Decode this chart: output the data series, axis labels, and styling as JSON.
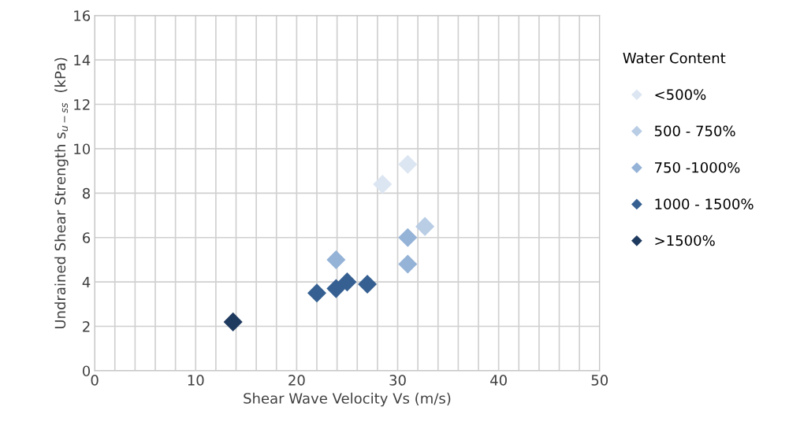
{
  "chart_data": {
    "type": "scatter",
    "xlabel": "Shear Wave Velocity Vs (m/s)",
    "ylabel": "Undrained Shear Strength s$_{u−ss}$  (kPa)",
    "legend_title": "Water Content",
    "legend": "right",
    "marker": "diamond",
    "grid": true,
    "xlim": [
      0,
      50
    ],
    "ylim": [
      0,
      16
    ],
    "xticks": [
      0,
      {
        "value": 2,
        "label": null
      },
      {
        "value": 4,
        "label": null
      },
      {
        "value": 6,
        "label": null
      },
      {
        "value": 8,
        "label": null
      },
      10,
      {
        "value": 12,
        "label": null
      },
      {
        "value": 14,
        "label": null
      },
      {
        "value": 16,
        "label": null
      },
      {
        "value": 18,
        "label": null
      },
      20,
      {
        "value": 22,
        "label": null
      },
      {
        "value": 24,
        "label": null
      },
      {
        "value": 26,
        "label": null
      },
      {
        "value": 28,
        "label": null
      },
      30,
      {
        "value": 32,
        "label": null
      },
      {
        "value": 34,
        "label": null
      },
      {
        "value": 36,
        "label": null
      },
      {
        "value": 38,
        "label": null
      },
      40,
      {
        "value": 42,
        "label": null
      },
      {
        "value": 44,
        "label": null
      },
      {
        "value": 46,
        "label": null
      },
      {
        "value": 48,
        "label": null
      },
      50
    ],
    "yticks": [
      0,
      2,
      4,
      6,
      8,
      10,
      12,
      14,
      16
    ],
    "series": [
      {
        "name": "<500%",
        "color": "#dce6f2",
        "x": [
          28.5,
          31
        ],
        "values": [
          8.4,
          9.3
        ]
      },
      {
        "name": "500 - 750%",
        "color": "#b9cde5",
        "x": [
          32.7
        ],
        "values": [
          6.5
        ]
      },
      {
        "name": "750 -1000%",
        "color": "#95b3d7",
        "x": [
          23.9,
          31,
          31
        ],
        "values": [
          5.0,
          6.0,
          4.8
        ]
      },
      {
        "name": "1000 - 1500%",
        "color": "#366092",
        "x": [
          22,
          23.9,
          25,
          27
        ],
        "values": [
          3.5,
          3.7,
          4.0,
          3.9
        ]
      },
      {
        "name": ">1500%",
        "color": "#1f3a5f",
        "x": [
          13.7
        ],
        "values": [
          2.2
        ]
      }
    ]
  }
}
